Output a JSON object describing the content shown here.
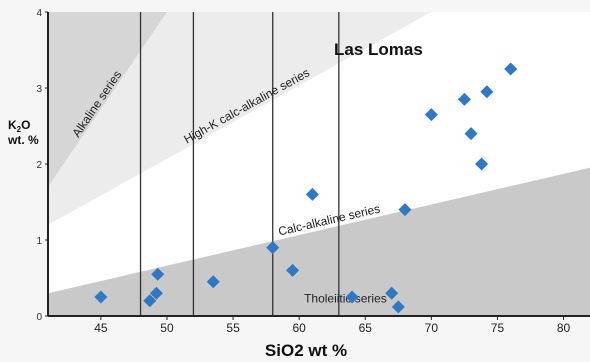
{
  "chart_data": {
    "type": "scatter",
    "title": "Las Lomas",
    "xlabel": "SiO2 wt %",
    "ylabel_main": "K",
    "ylabel_sub": "2",
    "ylabel_tail": "O",
    "ylabel_line2": "wt. %",
    "xlim": [
      41,
      82
    ],
    "ylim": [
      0,
      4
    ],
    "x_ticks": [
      "45",
      "50",
      "55",
      "60",
      "65",
      "70",
      "75",
      "80"
    ],
    "x_tick_values": [
      45,
      50,
      55,
      60,
      65,
      70,
      75,
      80
    ],
    "y_ticks": [
      "0",
      "1",
      "2",
      "3",
      "4"
    ],
    "y_tick_values": [
      0,
      1,
      2,
      3,
      4
    ],
    "vertical_lines": [
      48,
      52,
      58,
      63
    ],
    "fields": [
      {
        "name": "Alkaline series",
        "label": "Alkaline series"
      },
      {
        "name": "High-K calc-alkaline series",
        "label": "High-K calc-alkaline series"
      },
      {
        "name": "Calc-alkaline series",
        "label": "Calc-alkaline series"
      },
      {
        "name": "Tholeiitic series",
        "label": "Tholeiitic series"
      }
    ],
    "boundaries": {
      "alkaline_lower": [
        [
          41,
          1.7
        ],
        [
          50,
          4
        ]
      ],
      "highk_lower": [
        [
          41,
          1.2
        ],
        [
          70,
          4
        ]
      ],
      "tholeiitic_upper": [
        [
          41,
          0.3
        ],
        [
          82,
          1.95
        ]
      ]
    },
    "points": [
      {
        "x": 45,
        "y": 0.25
      },
      {
        "x": 48.7,
        "y": 0.2
      },
      {
        "x": 49.2,
        "y": 0.3
      },
      {
        "x": 49.3,
        "y": 0.55
      },
      {
        "x": 53.5,
        "y": 0.45
      },
      {
        "x": 58.0,
        "y": 0.9
      },
      {
        "x": 59.5,
        "y": 0.6
      },
      {
        "x": 61.0,
        "y": 1.6
      },
      {
        "x": 64.0,
        "y": 0.25
      },
      {
        "x": 67.0,
        "y": 0.3
      },
      {
        "x": 67.5,
        "y": 0.12
      },
      {
        "x": 68.0,
        "y": 1.4
      },
      {
        "x": 70.0,
        "y": 2.65
      },
      {
        "x": 72.5,
        "y": 2.85
      },
      {
        "x": 73.0,
        "y": 2.4
      },
      {
        "x": 73.8,
        "y": 2.0
      },
      {
        "x": 74.2,
        "y": 2.95
      },
      {
        "x": 76.0,
        "y": 3.25
      }
    ],
    "colors": {
      "marker": "#2f78c4",
      "alkaline_field": "#d6d6d6",
      "highk_field": "#ececec",
      "calc_field": "#ffffff",
      "tholeiitic_field": "#c9c9c9",
      "axis": "#222222"
    },
    "grid": false
  }
}
